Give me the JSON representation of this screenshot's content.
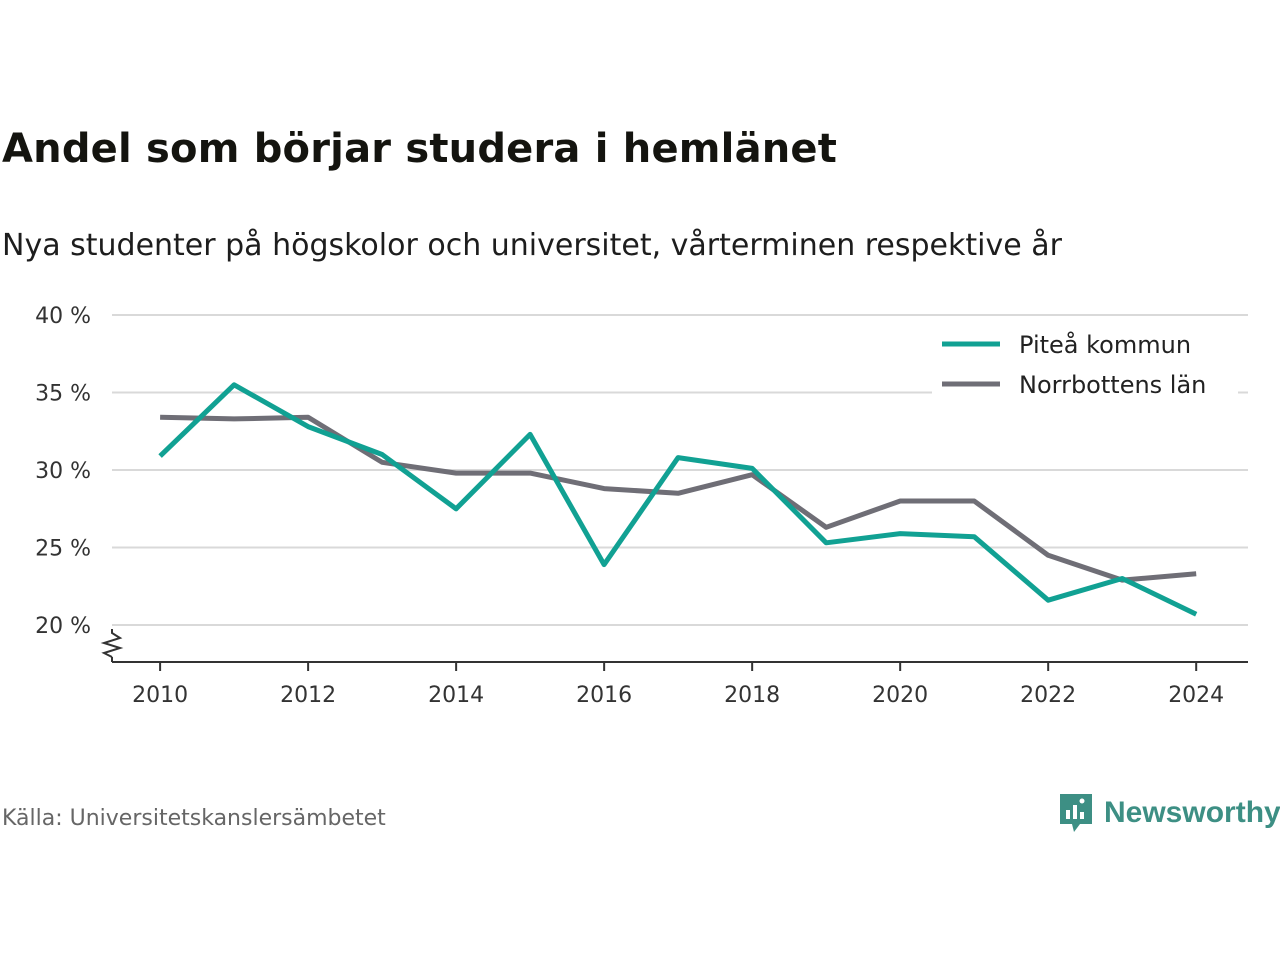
{
  "title": "Andel som börjar studera i hemlänet",
  "subtitle": "Nya studenter på högskolor och universitet, vårterminen respektive år",
  "source": "Källa: Universitetskanslersämbetet",
  "brand": {
    "name": "Newsworthy",
    "icon": "newsworthy-logo-icon",
    "color": "#3d8f84"
  },
  "chart_data": {
    "type": "line",
    "title": "Andel som börjar studera i hemlänet",
    "subtitle": "Nya studenter på högskolor och universitet, vårterminen respektive år",
    "x": [
      2010,
      2011,
      2012,
      2013,
      2014,
      2015,
      2016,
      2017,
      2018,
      2019,
      2020,
      2021,
      2022,
      2023,
      2024
    ],
    "series": [
      {
        "name": "Piteå kommun",
        "color": "#11a193",
        "values": [
          30.9,
          35.5,
          32.8,
          31.0,
          27.5,
          32.3,
          23.9,
          30.8,
          30.1,
          25.3,
          25.9,
          25.7,
          21.6,
          23.0,
          20.7
        ]
      },
      {
        "name": "Norrbottens län",
        "color": "#6f6e76",
        "values": [
          33.4,
          33.3,
          33.4,
          30.5,
          29.8,
          29.8,
          28.8,
          28.5,
          29.7,
          26.3,
          28.0,
          28.0,
          24.5,
          22.9,
          23.3
        ]
      }
    ],
    "ylim": [
      17.5,
      40
    ],
    "yticks": [
      20,
      25,
      30,
      35,
      40
    ],
    "ytick_labels": [
      "20 %",
      "25 %",
      "30 %",
      "35 %",
      "40 %"
    ],
    "xticks": [
      2010,
      2012,
      2014,
      2016,
      2018,
      2020,
      2022,
      2024
    ],
    "xtick_labels": [
      "2010",
      "2012",
      "2014",
      "2016",
      "2018",
      "2020",
      "2022",
      "2024"
    ],
    "xlim": [
      2009.35,
      2024.7
    ],
    "axis_break": true,
    "grid": true,
    "legend": "top-right"
  }
}
